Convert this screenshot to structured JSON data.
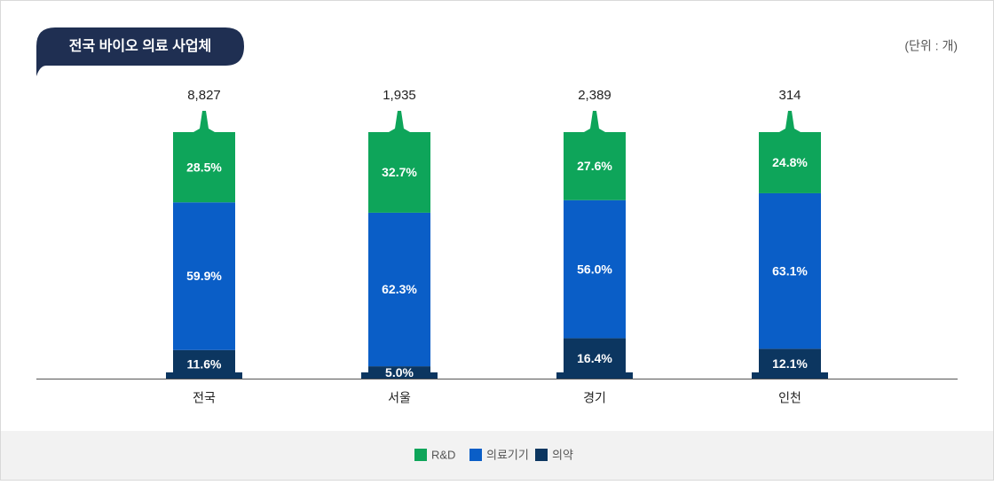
{
  "chart_data": {
    "type": "stacked_bar_100",
    "title": "전국 바이오 의료 사업체",
    "unit_label": "(단위 : 개)",
    "categories": [
      "전국",
      "서울",
      "경기",
      "인천"
    ],
    "totals": [
      8827,
      1935,
      2389,
      314
    ],
    "total_labels": [
      "8,827",
      "1,935",
      "2,389",
      "314"
    ],
    "ylim": [
      0,
      100
    ],
    "series": [
      {
        "name": "R&D",
        "color": "#0ea55a",
        "values": [
          28.5,
          32.7,
          27.6,
          24.8
        ],
        "value_labels": [
          "28.5%",
          "32.7%",
          "27.6%",
          "24.8%"
        ]
      },
      {
        "name": "의료기기",
        "color": "#0a5ec7",
        "values": [
          59.9,
          62.3,
          56.0,
          63.1
        ],
        "value_labels": [
          "59.9%",
          "62.3%",
          "56.0%",
          "63.1%"
        ]
      },
      {
        "name": "의약",
        "color": "#0c3660",
        "values": [
          11.6,
          5.0,
          16.4,
          12.1
        ],
        "value_labels": [
          "11.6%",
          "5.0%",
          "16.4%",
          "12.1%"
        ]
      }
    ]
  }
}
